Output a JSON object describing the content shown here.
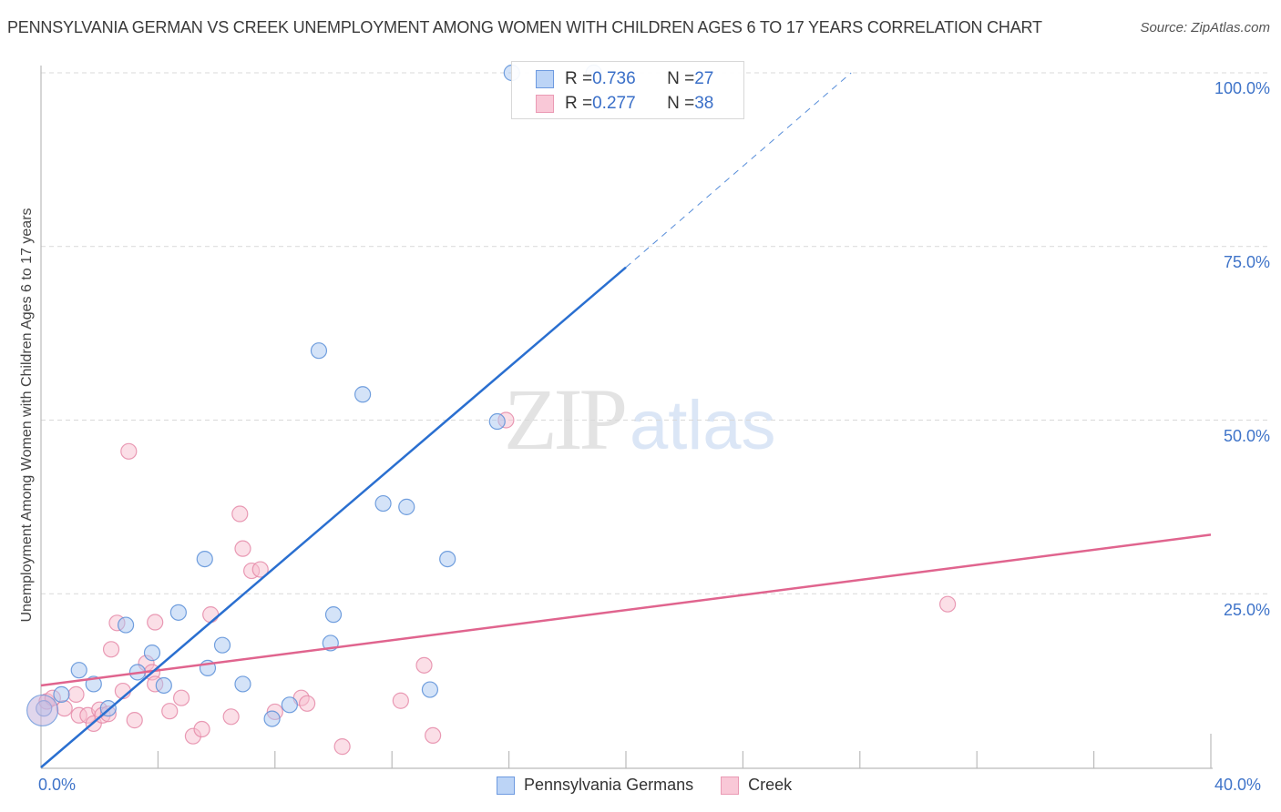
{
  "header": {
    "title": "PENNSYLVANIA GERMAN VS CREEK UNEMPLOYMENT AMONG WOMEN WITH CHILDREN AGES 6 TO 17 YEARS CORRELATION CHART",
    "source": "Source: ZipAtlas.com"
  },
  "axes": {
    "ylabel": "Unemployment Among Women with Children Ages 6 to 17 years",
    "y_ticks": [
      "100.0%",
      "75.0%",
      "50.0%",
      "25.0%"
    ],
    "x_min_label": "0.0%",
    "x_max_label": "40.0%"
  },
  "legend": {
    "rows": [
      {
        "r_label": "R = ",
        "r_value": "0.736",
        "n_label": "N = ",
        "n_value": "27"
      },
      {
        "r_label": "R = ",
        "r_value": "0.277",
        "n_label": "N = ",
        "n_value": "38"
      }
    ],
    "series_names": [
      "Pennsylvania Germans",
      "Creek"
    ]
  },
  "watermark": {
    "zip": "ZIP",
    "atlas": "atlas"
  },
  "colors": {
    "blue_fill": "#a9c8f2",
    "blue_stroke": "#5b8fd8",
    "blue_line": "#2a6fd0",
    "pink_fill": "#f7bfd0",
    "pink_stroke": "#e58aa8",
    "pink_line": "#e0648e",
    "tick_text": "#3f74c9",
    "grid": "#d9d9d9"
  },
  "chart_data": {
    "type": "scatter",
    "title": "PENNSYLVANIA GERMAN VS CREEK UNEMPLOYMENT AMONG WOMEN WITH CHILDREN AGES 6 TO 17 YEARS CORRELATION CHART",
    "xlabel": "",
    "ylabel": "Unemployment Among Women with Children Ages 6 to 17 years",
    "xlim": [
      0,
      40
    ],
    "ylim": [
      0,
      100
    ],
    "x_tick_labels": [
      "0.0%",
      "40.0%"
    ],
    "y_tick_labels": [
      "25.0%",
      "50.0%",
      "75.0%",
      "100.0%"
    ],
    "grid": true,
    "legend_position": "top-center and bottom",
    "series": [
      {
        "name": "Pennsylvania Germans",
        "R": 0.736,
        "N": 27,
        "points": [
          [
            0.1,
            8.5
          ],
          [
            0.7,
            10.5
          ],
          [
            1.3,
            14.0
          ],
          [
            1.8,
            12.0
          ],
          [
            2.3,
            8.5
          ],
          [
            2.9,
            20.5
          ],
          [
            3.3,
            13.7
          ],
          [
            3.8,
            16.5
          ],
          [
            4.2,
            11.8
          ],
          [
            4.7,
            22.3
          ],
          [
            5.6,
            30.0
          ],
          [
            5.7,
            14.3
          ],
          [
            6.2,
            17.6
          ],
          [
            6.9,
            12.0
          ],
          [
            7.9,
            7.0
          ],
          [
            8.5,
            9.0
          ],
          [
            9.5,
            60.0
          ],
          [
            9.9,
            17.9
          ],
          [
            10.0,
            22.0
          ],
          [
            11.0,
            53.7
          ],
          [
            11.7,
            38.0
          ],
          [
            12.5,
            37.5
          ],
          [
            13.3,
            11.2
          ],
          [
            13.9,
            30.0
          ],
          [
            15.6,
            49.8
          ],
          [
            16.1,
            100.0
          ],
          [
            18.9,
            100.0
          ]
        ],
        "trend_line": {
          "x": [
            0,
            20.0
          ],
          "y": [
            0,
            72.0
          ],
          "extended_dashed_to": [
            27.7,
            100.0
          ]
        }
      },
      {
        "name": "Creek",
        "R": 0.277,
        "N": 38,
        "points": [
          [
            0.2,
            9.5
          ],
          [
            0.4,
            10.0
          ],
          [
            0.8,
            8.5
          ],
          [
            1.2,
            10.5
          ],
          [
            1.3,
            7.5
          ],
          [
            1.6,
            7.5
          ],
          [
            1.8,
            6.3
          ],
          [
            2.0,
            8.3
          ],
          [
            2.1,
            7.5
          ],
          [
            2.3,
            7.7
          ],
          [
            2.4,
            17.0
          ],
          [
            2.6,
            20.8
          ],
          [
            2.8,
            11.0
          ],
          [
            3.2,
            6.8
          ],
          [
            3.0,
            45.5
          ],
          [
            3.6,
            15.0
          ],
          [
            3.8,
            13.7
          ],
          [
            3.9,
            12.0
          ],
          [
            3.9,
            20.9
          ],
          [
            4.4,
            8.1
          ],
          [
            4.8,
            10.0
          ],
          [
            5.2,
            4.5
          ],
          [
            5.5,
            5.5
          ],
          [
            5.8,
            22.0
          ],
          [
            6.5,
            7.3
          ],
          [
            6.8,
            36.5
          ],
          [
            6.9,
            31.5
          ],
          [
            7.2,
            28.3
          ],
          [
            7.5,
            28.5
          ],
          [
            8.0,
            8.0
          ],
          [
            8.9,
            10.0
          ],
          [
            9.1,
            9.2
          ],
          [
            10.3,
            3.0
          ],
          [
            12.3,
            9.6
          ],
          [
            13.1,
            14.7
          ],
          [
            13.4,
            4.6
          ],
          [
            15.9,
            50.0
          ],
          [
            31.0,
            23.5
          ]
        ],
        "trend_line": {
          "x": [
            0,
            40.0
          ],
          "y": [
            11.8,
            33.5
          ]
        }
      }
    ]
  }
}
